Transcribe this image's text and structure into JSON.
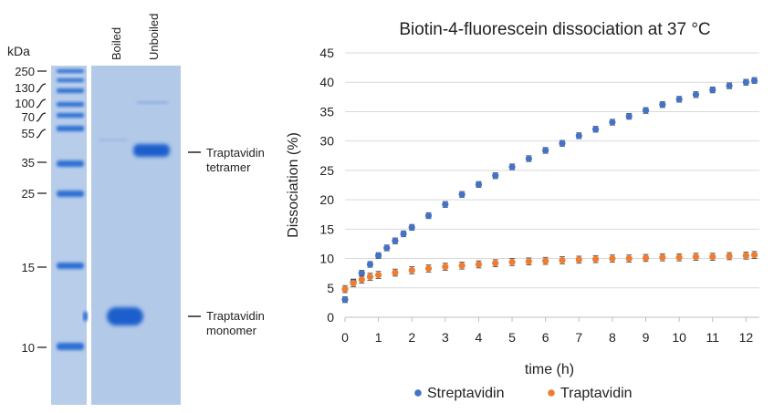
{
  "gel": {
    "unit_label": "kDa",
    "lane_labels": [
      "Boiled",
      "Unboiled"
    ],
    "markers": [
      {
        "label": "250",
        "kda": 250
      },
      {
        "label": "130",
        "kda": 130
      },
      {
        "label": "100",
        "kda": 100
      },
      {
        "label": "70",
        "kda": 70
      },
      {
        "label": "55",
        "kda": 55
      },
      {
        "label": "35",
        "kda": 35
      },
      {
        "label": "25",
        "kda": 25
      },
      {
        "label": "15",
        "kda": 15
      },
      {
        "label": "10",
        "kda": 10
      }
    ],
    "annotations": [
      {
        "lines": [
          "Traptavidin",
          "tetramer"
        ]
      },
      {
        "lines": [
          "Traptavidin",
          "monomer"
        ]
      }
    ],
    "colors": {
      "gel_bg": "#b7cdea",
      "band": "#2f6fd3"
    }
  },
  "chart_data": {
    "type": "scatter",
    "title": "Biotin-4-fluorescein dissociation at 37 °C",
    "xlabel": "time (h)",
    "ylabel": "Dissociation (%)",
    "xlim": [
      0,
      12.4
    ],
    "ylim": [
      0,
      45
    ],
    "x_ticks": [
      0,
      1,
      2,
      3,
      4,
      5,
      6,
      7,
      8,
      9,
      10,
      11,
      12
    ],
    "y_ticks": [
      0,
      5,
      10,
      15,
      20,
      25,
      30,
      35,
      40,
      45
    ],
    "error_bars": true,
    "legend_position": "bottom",
    "series": [
      {
        "name": "Streptavidin",
        "color": "#4472c4",
        "x": [
          0,
          0.25,
          0.5,
          0.75,
          1,
          1.25,
          1.5,
          1.75,
          2,
          2.5,
          3,
          3.5,
          4,
          4.5,
          5,
          5.5,
          6,
          6.5,
          7,
          7.5,
          8,
          8.5,
          9,
          9.5,
          10,
          10.5,
          11,
          11.5,
          12,
          12.25
        ],
        "y": [
          3.0,
          6.0,
          7.5,
          9.0,
          10.5,
          11.8,
          13.0,
          14.2,
          15.3,
          17.3,
          19.2,
          20.9,
          22.6,
          24.1,
          25.6,
          27.0,
          28.4,
          29.6,
          30.9,
          32.0,
          33.2,
          34.2,
          35.2,
          36.2,
          37.1,
          37.9,
          38.7,
          39.4,
          40.0,
          40.3
        ]
      },
      {
        "name": "Traptavidin",
        "color": "#ed7d31",
        "x": [
          0,
          0.25,
          0.5,
          0.75,
          1,
          1.5,
          2,
          2.5,
          3,
          3.5,
          4,
          4.5,
          5,
          5.5,
          6,
          6.5,
          7,
          7.5,
          8,
          8.5,
          9,
          9.5,
          10,
          10.5,
          11,
          11.5,
          12,
          12.25
        ],
        "y": [
          4.8,
          5.8,
          6.4,
          6.9,
          7.2,
          7.6,
          8.0,
          8.3,
          8.6,
          8.8,
          9.0,
          9.2,
          9.4,
          9.5,
          9.6,
          9.7,
          9.8,
          9.9,
          10.0,
          10.0,
          10.1,
          10.2,
          10.2,
          10.3,
          10.3,
          10.4,
          10.5,
          10.6
        ]
      }
    ]
  }
}
